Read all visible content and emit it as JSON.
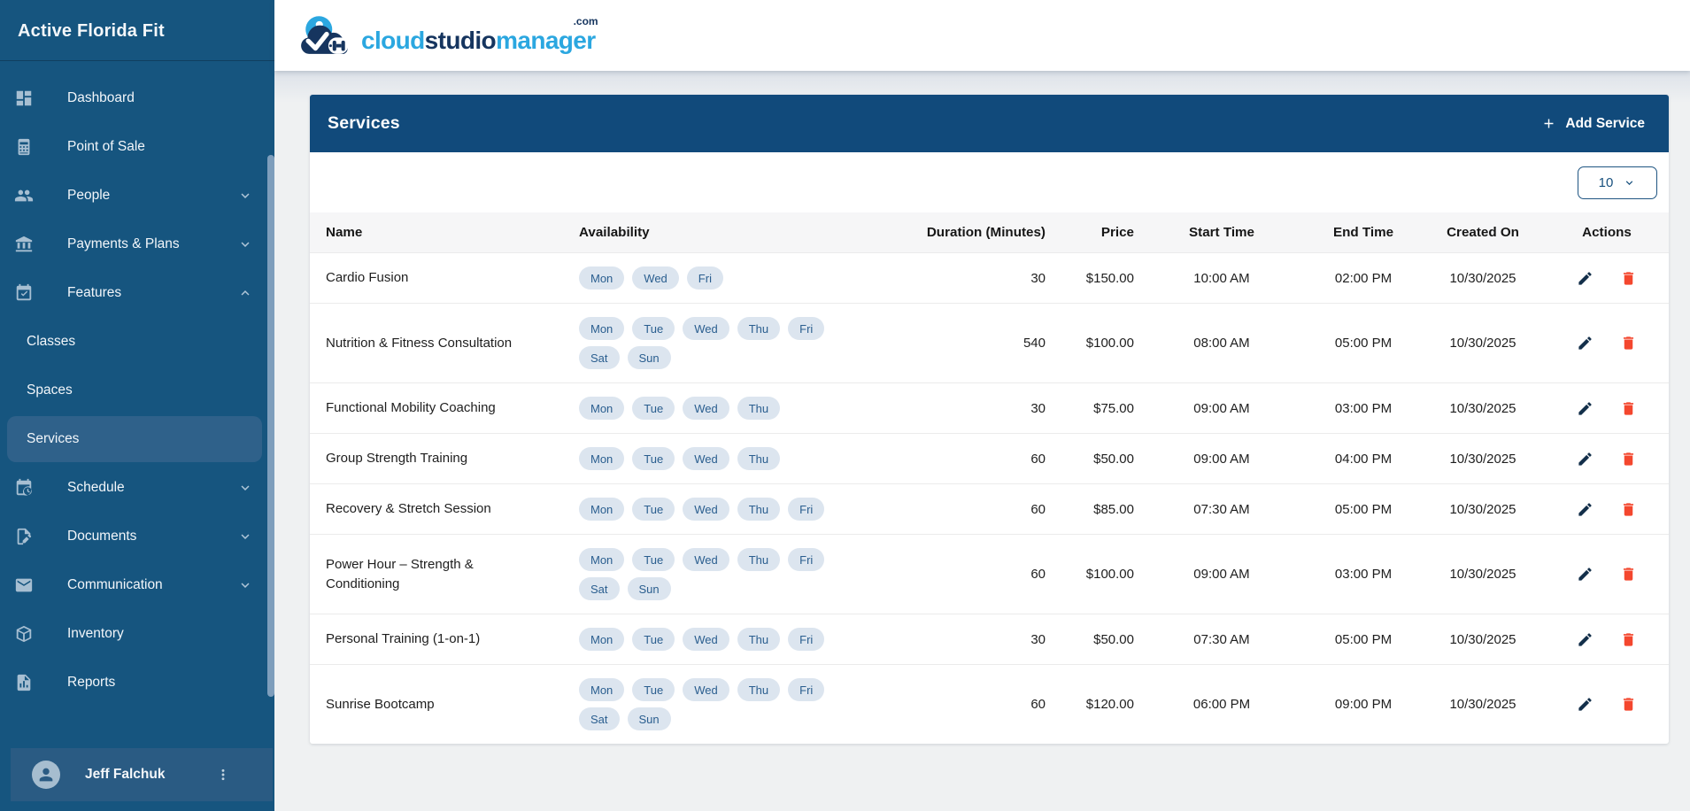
{
  "sidebar": {
    "title": "Active Florida Fit",
    "items": [
      {
        "type": "item",
        "label": "Dashboard",
        "icon": "dashboard"
      },
      {
        "type": "item",
        "label": "Point of Sale",
        "icon": "point-of-sale"
      },
      {
        "type": "item",
        "label": "People",
        "icon": "people",
        "chevron": "down"
      },
      {
        "type": "item",
        "label": "Payments & Plans",
        "icon": "bank",
        "chevron": "down"
      },
      {
        "type": "item",
        "label": "Features",
        "icon": "calendar-check",
        "chevron": "up"
      },
      {
        "type": "subitem",
        "label": "Classes"
      },
      {
        "type": "subitem",
        "label": "Spaces"
      },
      {
        "type": "subitem",
        "label": "Services",
        "selected": true
      },
      {
        "type": "item",
        "label": "Schedule",
        "icon": "calendar-clock",
        "chevron": "down"
      },
      {
        "type": "item",
        "label": "Documents",
        "icon": "document-edit",
        "chevron": "down"
      },
      {
        "type": "item",
        "label": "Communication",
        "icon": "mail",
        "chevron": "down"
      },
      {
        "type": "item",
        "label": "Inventory",
        "icon": "inventory-box"
      },
      {
        "type": "item",
        "label": "Reports",
        "icon": "report-file"
      }
    ],
    "user": {
      "name": "Jeff Falchuk",
      "menu_icon": "kebab-menu",
      "avatar_icon": "person"
    }
  },
  "header": {
    "logo": {
      "cloud": "cloud",
      "studio": "studio",
      "manager": "manager",
      "suffix": ".com"
    }
  },
  "panel": {
    "title": "Services",
    "add_button_label": "Add Service",
    "page_size": "10",
    "table": {
      "columns": [
        "Name",
        "Availability",
        "Duration (Minutes)",
        "Price",
        "Start Time",
        "End Time",
        "Created On",
        "Actions"
      ],
      "rows": [
        {
          "name": "Cardio Fusion",
          "days": [
            "Mon",
            "Wed",
            "Fri"
          ],
          "duration": "30",
          "price": "$150.00",
          "start_time": "10:00 AM",
          "end_time": "02:00 PM",
          "created_on": "10/30/2025"
        },
        {
          "name": "Nutrition & Fitness Consultation",
          "days": [
            "Mon",
            "Tue",
            "Wed",
            "Thu",
            "Fri",
            "Sat",
            "Sun"
          ],
          "duration": "540",
          "price": "$100.00",
          "start_time": "08:00 AM",
          "end_time": "05:00 PM",
          "created_on": "10/30/2025"
        },
        {
          "name": "Functional Mobility Coaching",
          "days": [
            "Mon",
            "Tue",
            "Wed",
            "Thu"
          ],
          "duration": "30",
          "price": "$75.00",
          "start_time": "09:00 AM",
          "end_time": "03:00 PM",
          "created_on": "10/30/2025"
        },
        {
          "name": "Group Strength Training",
          "days": [
            "Mon",
            "Tue",
            "Wed",
            "Thu"
          ],
          "duration": "60",
          "price": "$50.00",
          "start_time": "09:00 AM",
          "end_time": "04:00 PM",
          "created_on": "10/30/2025"
        },
        {
          "name": "Recovery & Stretch Session",
          "days": [
            "Mon",
            "Tue",
            "Wed",
            "Thu",
            "Fri"
          ],
          "duration": "60",
          "price": "$85.00",
          "start_time": "07:30 AM",
          "end_time": "05:00 PM",
          "created_on": "10/30/2025"
        },
        {
          "name": "Power Hour – Strength & Conditioning",
          "days": [
            "Mon",
            "Tue",
            "Wed",
            "Thu",
            "Fri",
            "Sat",
            "Sun"
          ],
          "duration": "60",
          "price": "$100.00",
          "start_time": "09:00 AM",
          "end_time": "03:00 PM",
          "created_on": "10/30/2025"
        },
        {
          "name": "Personal Training (1-on-1)",
          "days": [
            "Mon",
            "Tue",
            "Wed",
            "Thu",
            "Fri"
          ],
          "duration": "30",
          "price": "$50.00",
          "start_time": "07:30 AM",
          "end_time": "05:00 PM",
          "created_on": "10/30/2025"
        },
        {
          "name": "Sunrise Bootcamp",
          "days": [
            "Mon",
            "Tue",
            "Wed",
            "Thu",
            "Fri",
            "Sat",
            "Sun"
          ],
          "duration": "60",
          "price": "$120.00",
          "start_time": "06:00 PM",
          "end_time": "09:00 PM",
          "created_on": "10/30/2025"
        }
      ]
    }
  },
  "colors": {
    "sidebar_bg": "#16557F",
    "panel_header_bg": "#114A7B",
    "selected_item_bg": "#2F618A",
    "user_row_bg": "#2A5B83",
    "pill_bg": "#DCE5EF",
    "pill_text": "#2A5E8F",
    "edit_icon": "#132F4A",
    "delete_icon": "#F4472E",
    "logo_light_blue": "#2BA7E0",
    "logo_navy": "#16355F",
    "content_bg": "#EFF1F2"
  }
}
